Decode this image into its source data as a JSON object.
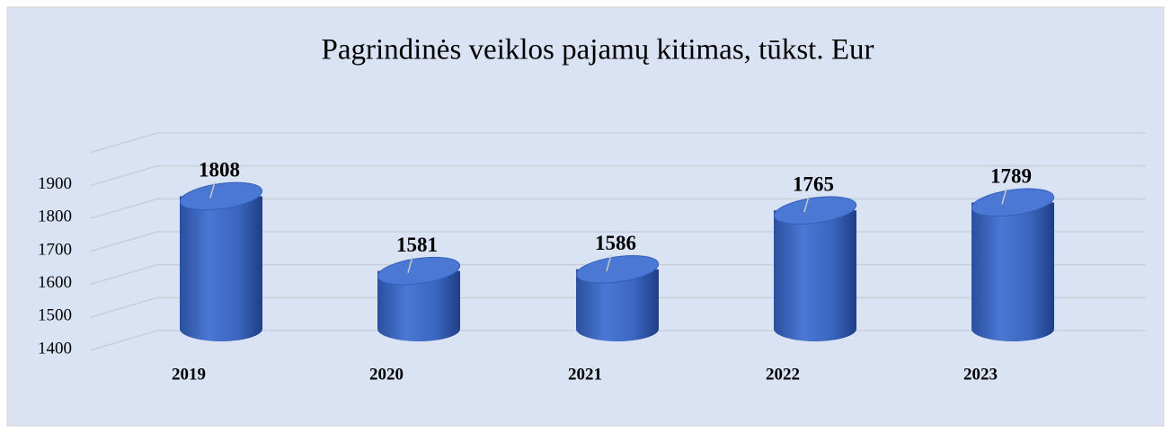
{
  "chart_data": {
    "type": "bar",
    "title": "Pagrindinės veiklos pajamų kitimas, tūkst. Eur",
    "categories": [
      "2019",
      "2020",
      "2021",
      "2022",
      "2023"
    ],
    "values": [
      1808,
      1581,
      1586,
      1765,
      1789
    ],
    "color": "#4472c4",
    "ylim": [
      1400,
      2000
    ],
    "yticks": [
      1400,
      1500,
      1600,
      1700,
      1800,
      1900
    ],
    "grid": true
  }
}
